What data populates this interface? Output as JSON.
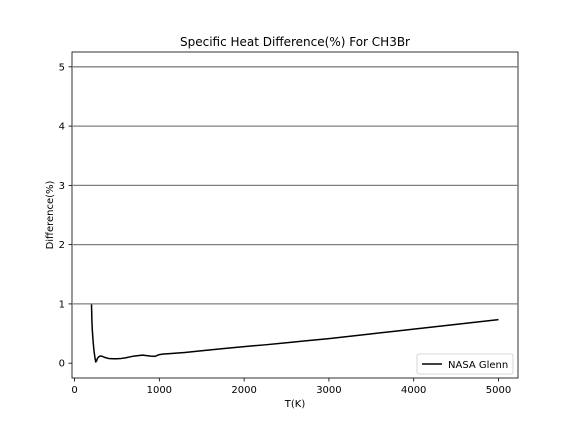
{
  "chart_data": {
    "type": "line",
    "title": "Specific Heat Difference(%) For CH3Br",
    "xlabel": "T(K)",
    "ylabel": "Difference(%)",
    "xlim": [
      -30,
      5230
    ],
    "ylim": [
      -0.25,
      5.25
    ],
    "xticks": [
      0,
      1000,
      2000,
      3000,
      4000,
      5000
    ],
    "yticks": [
      0,
      1,
      2,
      3,
      4,
      5
    ],
    "hlines": [
      1,
      2,
      3,
      4,
      5
    ],
    "grid": false,
    "legend_position": "lower right",
    "series": [
      {
        "name": "NASA Glenn",
        "color": "#000000",
        "x": [
          200,
          205,
          210,
          220,
          230,
          240,
          250,
          260,
          270,
          280,
          298,
          320,
          350,
          400,
          450,
          500,
          550,
          600,
          700,
          800,
          900,
          950,
          1000,
          1050,
          1100,
          1200,
          1300,
          1400,
          1500,
          1750,
          2000,
          2250,
          2500,
          2750,
          3000,
          3250,
          3500,
          3750,
          4000,
          4250,
          4500,
          4750,
          5000
        ],
        "y": [
          0.99,
          0.7,
          0.55,
          0.35,
          0.2,
          0.1,
          0.02,
          0.04,
          0.08,
          0.1,
          0.12,
          0.12,
          0.1,
          0.08,
          0.075,
          0.075,
          0.08,
          0.09,
          0.12,
          0.135,
          0.12,
          0.115,
          0.145,
          0.155,
          0.16,
          0.17,
          0.18,
          0.195,
          0.21,
          0.245,
          0.28,
          0.31,
          0.345,
          0.38,
          0.415,
          0.455,
          0.495,
          0.535,
          0.575,
          0.615,
          0.655,
          0.695,
          0.735
        ]
      }
    ]
  }
}
